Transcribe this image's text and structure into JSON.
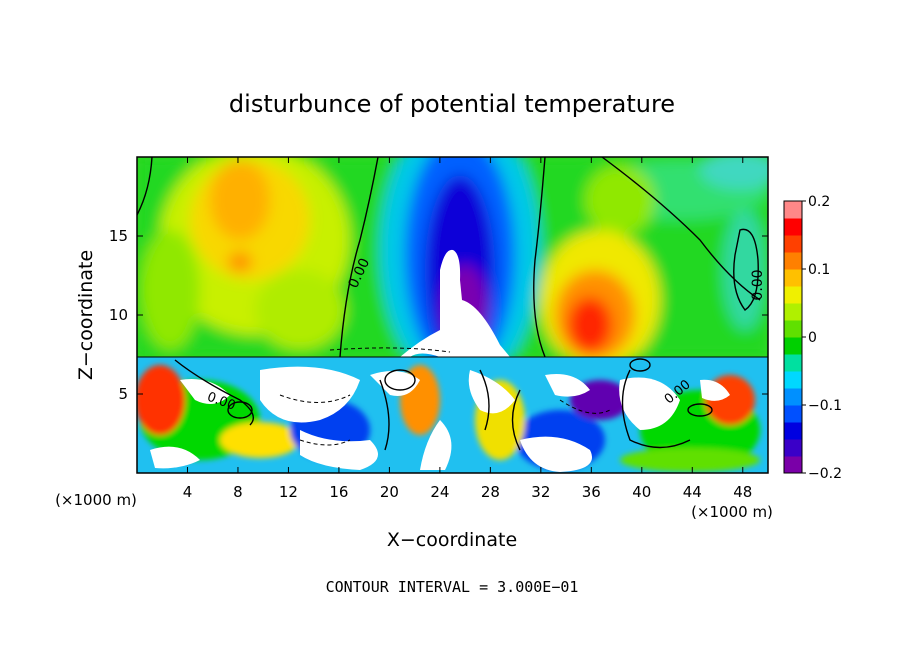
{
  "chart_data": {
    "type": "heatmap",
    "title": "disturbunce of potential temperature",
    "xlabel": "X−coordinate",
    "ylabel": "Z−coordinate",
    "x_unit_left": "(×1000 m)",
    "x_unit_right": "(×1000 m)",
    "xlim": [
      0,
      50
    ],
    "ylim": [
      0,
      20
    ],
    "x_ticks": [
      4,
      8,
      12,
      16,
      20,
      24,
      28,
      32,
      36,
      40,
      44,
      48
    ],
    "x_tick_labels": [
      "4",
      "8",
      "12",
      "16",
      "20",
      "24",
      "28",
      "32",
      "36",
      "40",
      "44",
      "48"
    ],
    "y_ticks": [
      5,
      10,
      15
    ],
    "y_tick_labels": [
      "5",
      "10",
      "15"
    ],
    "colorbar": {
      "range": [
        -0.2,
        0.2
      ],
      "tick_values": [
        0.2,
        0.1,
        0,
        -0.1,
        -0.2
      ],
      "tick_labels": [
        "0.2",
        "0.1",
        "0",
        "−0.1",
        "−0.2"
      ],
      "colors": [
        "#7a00a8",
        "#3a00c8",
        "#0000e0",
        "#0050ff",
        "#0090ff",
        "#00d8ff",
        "#00e0a0",
        "#00d000",
        "#60e000",
        "#b0f000",
        "#f0f000",
        "#ffc000",
        "#ff8000",
        "#ff4000",
        "#ff0000",
        "#ff8888"
      ]
    },
    "contour_labels": [
      "0.00",
      "0.00",
      "0.00",
      "0.00"
    ],
    "footer": "CONTOUR INTERVAL = 3.000E−01",
    "grid": false
  }
}
